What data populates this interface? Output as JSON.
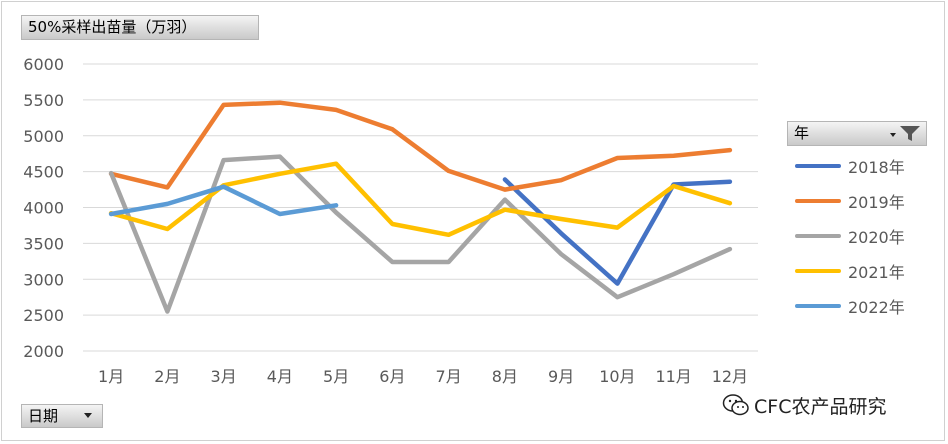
{
  "header": {
    "title": "50%采样出苗量（万羽）"
  },
  "x_field": {
    "label": "日期"
  },
  "legend_field": {
    "label": "年"
  },
  "watermark": {
    "text": "CFC农产品研究"
  },
  "icons": {
    "filter": "filter-icon",
    "dropdown": "chevron-down-icon",
    "wechat": "wechat-icon"
  },
  "chart_data": {
    "type": "line",
    "title": "50%采样出苗量（万羽）",
    "xlabel": "日期",
    "ylabel": "",
    "categories": [
      "1月",
      "2月",
      "3月",
      "4月",
      "5月",
      "6月",
      "7月",
      "8月",
      "9月",
      "10月",
      "11月",
      "12月"
    ],
    "y_ticks": [
      "6000",
      "5500",
      "5000",
      "4500",
      "4000",
      "3500",
      "3000",
      "2500",
      "2000"
    ],
    "ylim": [
      2000,
      6000
    ],
    "grid": true,
    "legend_position": "right",
    "series": [
      {
        "name": "2018年",
        "color": "#4472C4",
        "values": [
          null,
          null,
          null,
          null,
          null,
          null,
          null,
          4390,
          3640,
          2940,
          4320,
          4360
        ]
      },
      {
        "name": "2019年",
        "color": "#ED7D31",
        "values": [
          4470,
          4280,
          5430,
          5460,
          5360,
          5090,
          4510,
          4250,
          4380,
          4690,
          4720,
          4800
        ]
      },
      {
        "name": "2020年",
        "color": "#A5A5A5",
        "values": [
          4480,
          2550,
          4660,
          4710,
          3930,
          3240,
          3240,
          4110,
          3350,
          2750,
          3070,
          3420
        ]
      },
      {
        "name": "2021年",
        "color": "#FFC000",
        "values": [
          3920,
          3700,
          4310,
          4470,
          4610,
          3770,
          3620,
          3970,
          3840,
          3720,
          4300,
          4060
        ]
      },
      {
        "name": "2022年",
        "color": "#5B9BD5",
        "values": [
          3910,
          4050,
          4290,
          3910,
          4030,
          null,
          null,
          null,
          null,
          null,
          null,
          null
        ]
      }
    ]
  }
}
